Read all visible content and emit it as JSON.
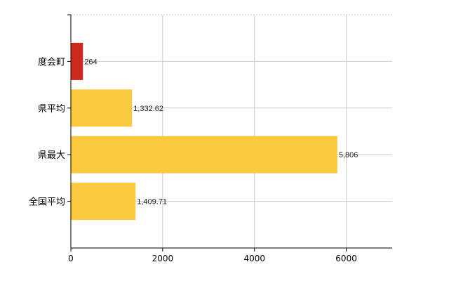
{
  "chart_data": {
    "type": "bar",
    "orientation": "horizontal",
    "title": "",
    "xlabel": "",
    "ylabel": "",
    "categories": [
      "度会町",
      "県平均",
      "県最大",
      "全国平均"
    ],
    "values": [
      264,
      1332.62,
      5806,
      1409.71
    ],
    "value_labels": [
      "264",
      "1,332.62",
      "5,806",
      "1,409.71"
    ],
    "colors": [
      "#cc2a1e",
      "#fbc93d",
      "#fbc93d",
      "#fbc93d"
    ],
    "xlim": [
      0,
      7000
    ],
    "xticks": [
      0,
      2000,
      4000,
      6000
    ],
    "grid": true,
    "legend": "none"
  }
}
